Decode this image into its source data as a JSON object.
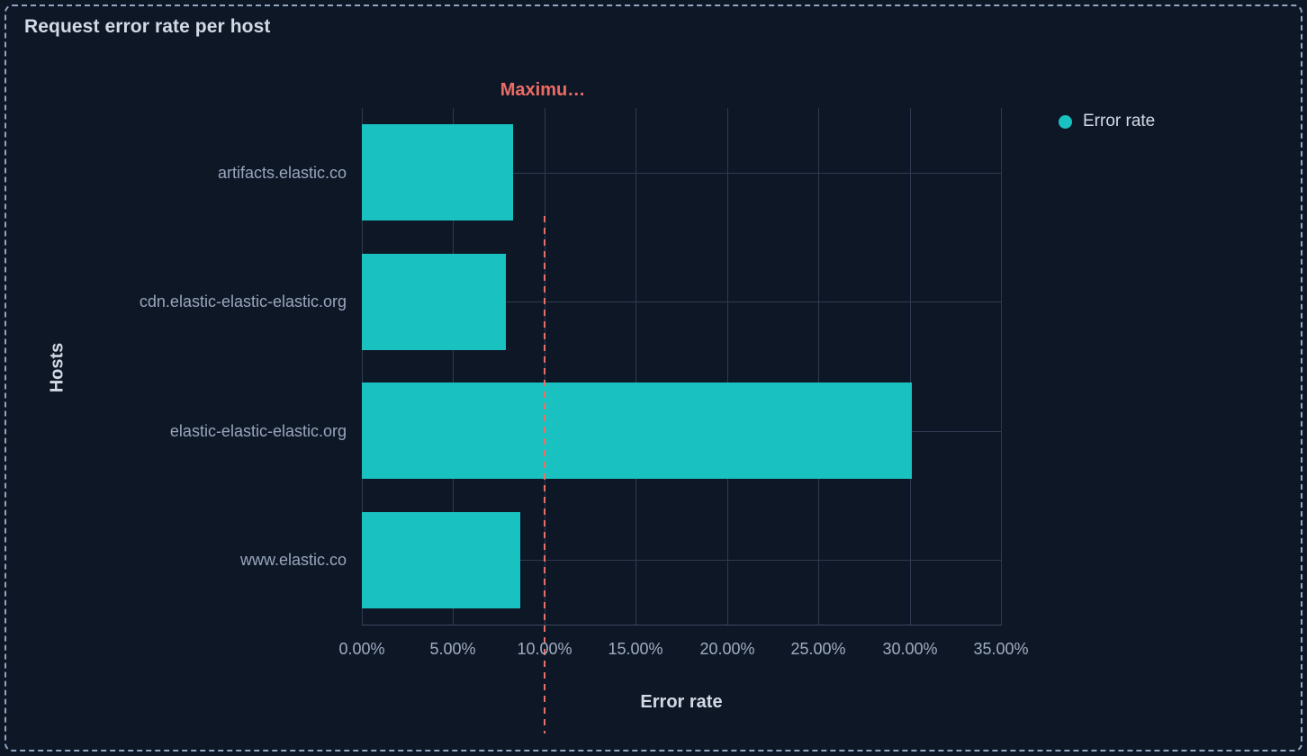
{
  "panel": {
    "title": "Request error rate per host"
  },
  "legend": {
    "items": [
      {
        "label": "Error rate",
        "color": "#19C2C1"
      }
    ]
  },
  "colors": {
    "background": "#0E1726",
    "panel_dashed_border": "#92A5C2",
    "bar": "#19C2C1",
    "annotation": "#EE6C64",
    "gridline": "#2E3A50",
    "tick_label": "#98A6BC",
    "title_text": "#D3DAE6"
  },
  "chart_data": {
    "type": "bar",
    "orientation": "horizontal",
    "title": "Request error rate per host",
    "categories": [
      "artifacts.elastic.co",
      "cdn.elastic-elastic-elastic.org",
      "elastic-elastic-elastic.org",
      "www.elastic.co"
    ],
    "series": [
      {
        "name": "Error rate",
        "color": "#19C2C1",
        "values": [
          8.3,
          7.9,
          30.1,
          8.7
        ]
      }
    ],
    "value_unit": "percent",
    "xlabel": "Error rate",
    "ylabel": "Hosts",
    "xlim": [
      0,
      35
    ],
    "x_tick_values": [
      0,
      5,
      10,
      15,
      20,
      25,
      30,
      35
    ],
    "x_tick_labels": [
      "0.00%",
      "5.00%",
      "10.00%",
      "15.00%",
      "20.00%",
      "25.00%",
      "30.00%",
      "35.00%"
    ],
    "grid": true,
    "legend_position": "top-right",
    "annotation": {
      "label": "Maximu…",
      "value": 10,
      "color": "#EE6C64",
      "line_style": "dashed"
    }
  }
}
